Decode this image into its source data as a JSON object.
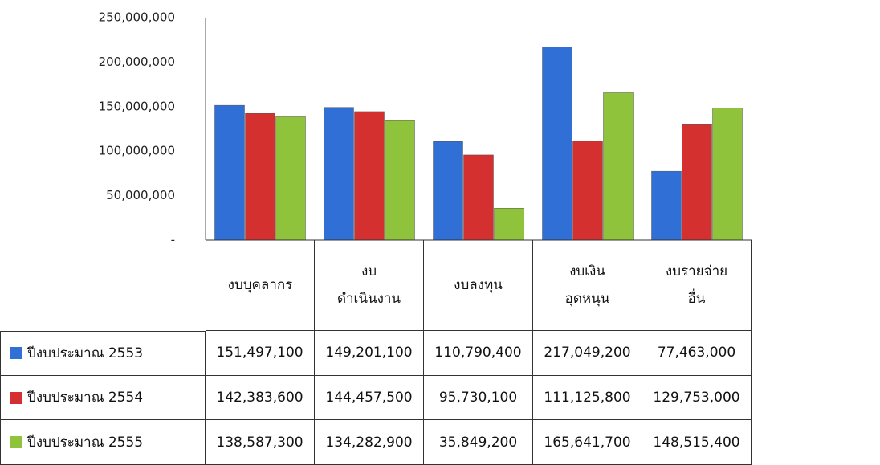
{
  "chart_data": {
    "type": "bar",
    "categories": [
      "งบบุคลากร",
      "งบ\nดำเนินงาน",
      "งบลงทุน",
      "งบเงิน\nอุดหนุน",
      "งบรายจ่าย\nอื่น"
    ],
    "series": [
      {
        "name": "ปีงบประมาณ 2553",
        "color": "#2f6fd6",
        "values": [
          151497100,
          149201100,
          110790400,
          217049200,
          77463000
        ],
        "value_labels": [
          "151,497,100",
          "149,201,100",
          "110,790,400",
          "217,049,200",
          "77,463,000"
        ]
      },
      {
        "name": "ปีงบประมาณ 2554",
        "color": "#d4302f",
        "values": [
          142383600,
          144457500,
          95730100,
          111125800,
          129753000
        ],
        "value_labels": [
          "142,383,600",
          "144,457,500",
          "95,730,100",
          "111,125,800",
          "129,753,000"
        ]
      },
      {
        "name": "ปีงบประมาณ 2555",
        "color": "#8ec33b",
        "values": [
          138587300,
          134282900,
          35849200,
          165641700,
          148515400
        ],
        "value_labels": [
          "138,587,300",
          "134,282,900",
          "35,849,200",
          "165,641,700",
          "148,515,400"
        ]
      }
    ],
    "ylim": [
      0,
      250000000
    ],
    "yticks": [
      {
        "value": 0,
        "label": "-"
      },
      {
        "value": 50000000,
        "label": "50,000,000"
      },
      {
        "value": 100000000,
        "label": "100,000,000"
      },
      {
        "value": 150000000,
        "label": "150,000,000"
      },
      {
        "value": 200000000,
        "label": "200,000,000"
      },
      {
        "value": 250000000,
        "label": "250,000,000"
      }
    ],
    "grid": false
  }
}
